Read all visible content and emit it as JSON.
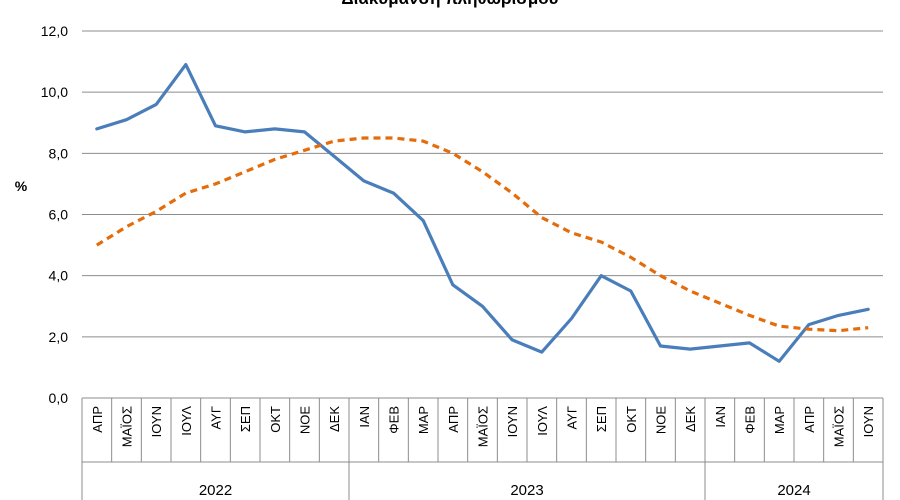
{
  "chart_data": {
    "type": "line",
    "title": "Διακύμανση πληθωρισμού",
    "ylabel": "%",
    "ylim": [
      0,
      12
    ],
    "y_ticks": [
      "0,0",
      "2,0",
      "4,0",
      "6,0",
      "8,0",
      "10,0",
      "12,0"
    ],
    "grid": true,
    "categories": [
      "ΑΠΡ",
      "ΜΑΪΟΣ",
      "ΙΟΥΝ",
      "ΙΟΥΛ",
      "ΑΥΓ",
      "ΣΕΠ",
      "ΟΚΤ",
      "ΝΟΕ",
      "ΔΕΚ",
      "ΙΑΝ",
      "ΦΕΒ",
      "ΜΑΡ",
      "ΑΠΡ",
      "ΜΑΪΟΣ",
      "ΙΟΥΝ",
      "ΙΟΥΛ",
      "ΑΥΓ",
      "ΣΕΠ",
      "ΟΚΤ",
      "ΝΟΕ",
      "ΔΕΚ",
      "ΙΑΝ",
      "ΦΕΒ",
      "ΜΑΡ",
      "ΑΠΡ",
      "ΜΑΪΟΣ",
      "ΙΟΥΝ"
    ],
    "year_groups": [
      {
        "label": "2022",
        "count": 9
      },
      {
        "label": "2023",
        "count": 12
      },
      {
        "label": "2024",
        "count": 6
      }
    ],
    "series": [
      {
        "color": "#4a7ebb",
        "style": "solid",
        "values": [
          8.8,
          9.1,
          9.6,
          10.9,
          8.9,
          8.7,
          8.8,
          8.7,
          7.9,
          7.1,
          6.7,
          5.8,
          3.7,
          3.0,
          1.9,
          1.5,
          2.6,
          4.0,
          3.5,
          1.7,
          1.6,
          1.7,
          1.8,
          1.2,
          2.4,
          2.7,
          2.9
        ]
      },
      {
        "color": "#e46c0a",
        "style": "dashed",
        "values": [
          5.0,
          5.6,
          6.1,
          6.7,
          7.0,
          7.4,
          7.8,
          8.1,
          8.4,
          8.5,
          8.5,
          8.4,
          8.0,
          7.4,
          6.7,
          5.9,
          5.4,
          5.1,
          4.6,
          4.0,
          3.5,
          3.1,
          2.7,
          2.35,
          2.25,
          2.2,
          2.3
        ]
      }
    ]
  }
}
